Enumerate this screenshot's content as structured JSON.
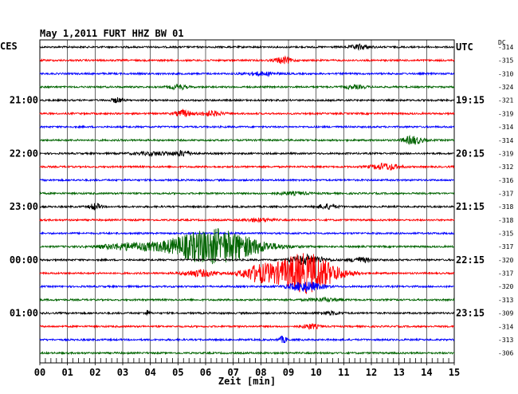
{
  "header": {
    "title": "May 1,2011   FURT HHZ BW 01",
    "left_label": "CES",
    "right_label": "UTC",
    "dc_label": "DC"
  },
  "chart_data": {
    "type": "line",
    "title": "May 1,2011   FURT HHZ BW 01",
    "xlabel": "Zeit [min]",
    "ylabel": "",
    "xlim": [
      0,
      15
    ],
    "x_ticks": [
      "00",
      "01",
      "02",
      "03",
      "04",
      "05",
      "06",
      "07",
      "08",
      "09",
      "10",
      "11",
      "12",
      "13",
      "14",
      "15"
    ],
    "grid": true,
    "colors": [
      "#000000",
      "#ff0000",
      "#0000ff",
      "#006400"
    ],
    "left_time_labels": [
      {
        "row": 4,
        "label": "21:00"
      },
      {
        "row": 8,
        "label": "22:00"
      },
      {
        "row": 12,
        "label": "23:00"
      },
      {
        "row": 16,
        "label": "00:00"
      },
      {
        "row": 20,
        "label": "01:00"
      }
    ],
    "right_time_labels": [
      {
        "row": 0,
        "label": "UTC"
      },
      {
        "row": 4,
        "label": "19:15"
      },
      {
        "row": 8,
        "label": "20:15"
      },
      {
        "row": 12,
        "label": "21:15"
      },
      {
        "row": 16,
        "label": "22:15"
      },
      {
        "row": 20,
        "label": "23:15"
      }
    ],
    "dc_offsets": [
      "-314",
      "-315",
      "-310",
      "-324",
      "-321",
      "-319",
      "-314",
      "-314",
      "-319",
      "-312",
      "-316",
      "-317",
      "-318",
      "-318",
      "-315",
      "-317",
      "-320",
      "-317",
      "-320",
      "-313",
      "-309",
      "-314",
      "-313",
      "-306"
    ],
    "events": [
      {
        "row": 0,
        "center": 11.6,
        "width": 0.35,
        "amp": 3
      },
      {
        "row": 1,
        "center": 8.8,
        "width": 0.3,
        "amp": 4
      },
      {
        "row": 2,
        "center": 8.0,
        "width": 0.6,
        "amp": 2
      },
      {
        "row": 3,
        "center": 5.0,
        "width": 0.3,
        "amp": 3
      },
      {
        "row": 3,
        "center": 11.4,
        "width": 0.4,
        "amp": 2
      },
      {
        "row": 4,
        "center": 2.8,
        "width": 0.2,
        "amp": 3
      },
      {
        "row": 5,
        "center": 5.2,
        "width": 0.3,
        "amp": 4
      },
      {
        "row": 5,
        "center": 6.2,
        "width": 0.4,
        "amp": 3
      },
      {
        "row": 7,
        "center": 13.5,
        "width": 0.35,
        "amp": 5
      },
      {
        "row": 8,
        "center": 5.2,
        "width": 0.3,
        "amp": 3
      },
      {
        "row": 8,
        "center": 4.2,
        "width": 0.8,
        "amp": 2
      },
      {
        "row": 9,
        "center": 12.5,
        "width": 0.5,
        "amp": 4
      },
      {
        "row": 11,
        "center": 9.2,
        "width": 0.6,
        "amp": 1.5
      },
      {
        "row": 12,
        "center": 2.0,
        "width": 0.2,
        "amp": 4
      },
      {
        "row": 12,
        "center": 10.4,
        "width": 0.35,
        "amp": 3
      },
      {
        "row": 13,
        "center": 7.9,
        "width": 0.5,
        "amp": 2
      },
      {
        "row": 15,
        "center": 6.3,
        "width": 1.6,
        "amp": 22
      },
      {
        "row": 15,
        "center": 3.2,
        "width": 1.0,
        "amp": 4
      },
      {
        "row": 16,
        "center": 11.6,
        "width": 0.4,
        "amp": 3
      },
      {
        "row": 16,
        "center": 9.7,
        "width": 0.6,
        "amp": 6
      },
      {
        "row": 17,
        "center": 9.6,
        "width": 1.1,
        "amp": 25
      },
      {
        "row": 17,
        "center": 7.9,
        "width": 0.6,
        "amp": 9
      },
      {
        "row": 17,
        "center": 5.8,
        "width": 0.6,
        "amp": 4
      },
      {
        "row": 18,
        "center": 9.6,
        "width": 0.6,
        "amp": 6
      },
      {
        "row": 19,
        "center": 10.3,
        "width": 0.6,
        "amp": 2
      },
      {
        "row": 20,
        "center": 3.9,
        "width": 0.1,
        "amp": 3
      },
      {
        "row": 20,
        "center": 10.5,
        "width": 0.4,
        "amp": 2
      },
      {
        "row": 21,
        "center": 9.8,
        "width": 0.3,
        "amp": 3
      },
      {
        "row": 22,
        "center": 8.8,
        "width": 0.15,
        "amp": 4
      }
    ]
  }
}
